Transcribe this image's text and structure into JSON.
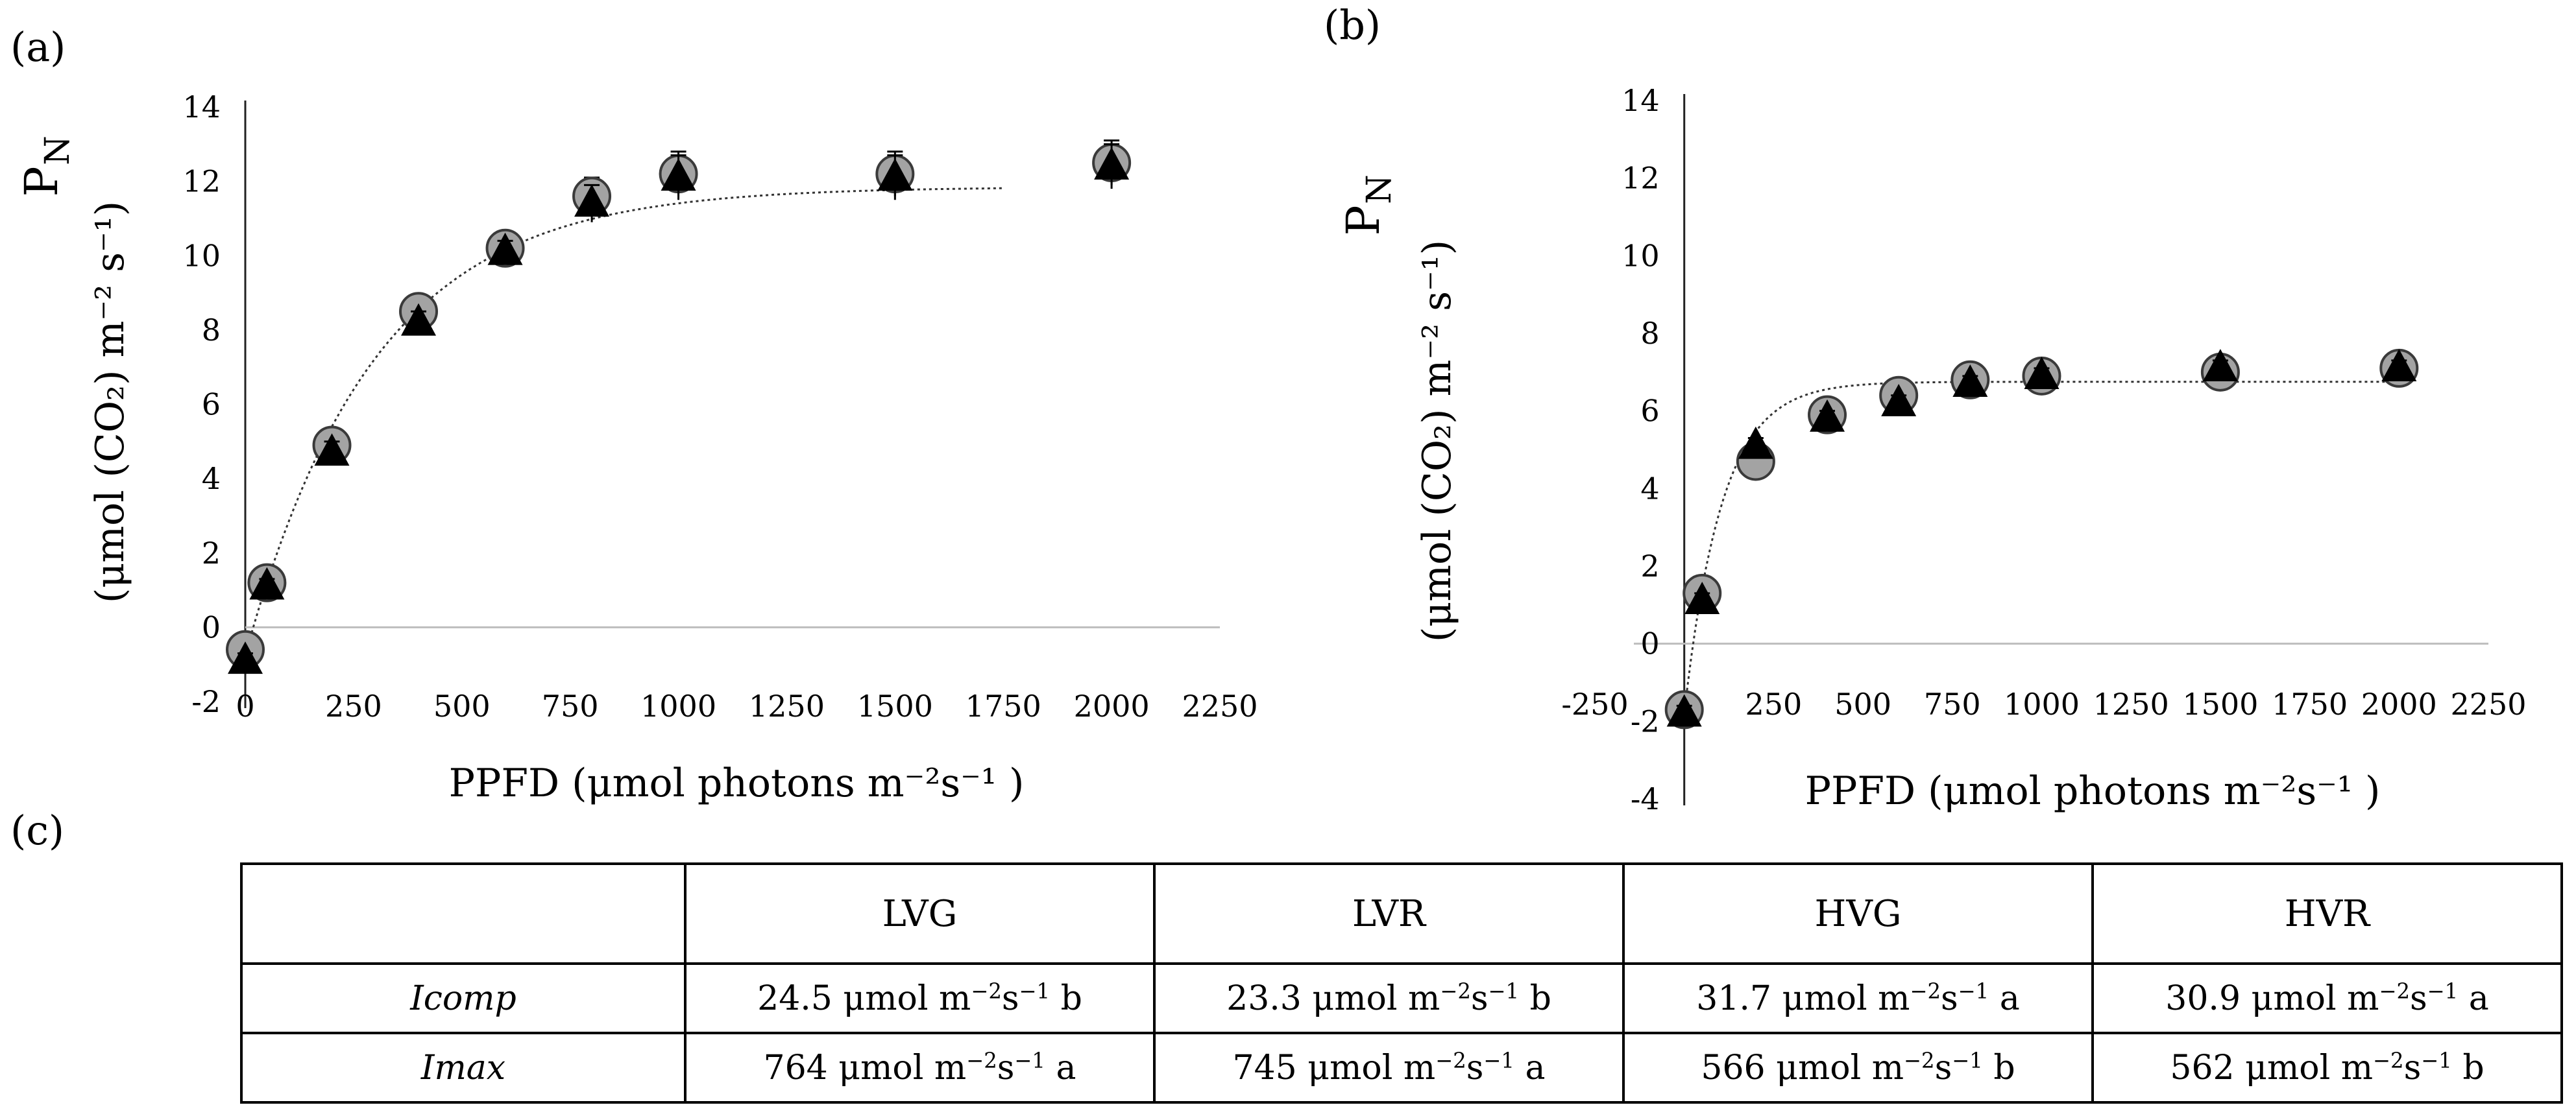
{
  "panels": {
    "a": "(a)",
    "b": "(b)",
    "c": "(c)"
  },
  "chart_data": [
    {
      "id": "a",
      "type": "scatter",
      "xlim": [
        0,
        2250
      ],
      "ylim": [
        -2,
        14
      ],
      "xticks": [
        "0",
        "250",
        "500",
        "750",
        "1000",
        "1250",
        "1500",
        "1750",
        "2000",
        "2250"
      ],
      "yticks": [
        "-2",
        "0",
        "2",
        "4",
        "6",
        "8",
        "10",
        "12",
        "14"
      ],
      "xlabel": "PPFD (μmol photons m⁻²s⁻¹ )",
      "ylabel_main": "P",
      "ylabel_main_sub": "N",
      "ylabel_units": "(μmol (CO₂) m⁻² s⁻¹)",
      "grid": false,
      "series": [
        {
          "name": "circles (grey)",
          "marker": "circle",
          "x": [
            0,
            50,
            200,
            400,
            600,
            800,
            1000,
            1500,
            2000
          ],
          "y": [
            -0.6,
            1.2,
            4.9,
            8.5,
            10.2,
            11.6,
            12.2,
            12.2,
            12.5
          ],
          "err": [
            0.2,
            0.2,
            0.3,
            0.3,
            0.3,
            0.5,
            0.6,
            0.6,
            0.6
          ]
        },
        {
          "name": "triangles (black)",
          "marker": "triangle",
          "x": [
            0,
            50,
            200,
            400,
            600,
            800,
            1000,
            1500,
            2000
          ],
          "y": [
            -0.9,
            1.1,
            4.7,
            8.2,
            10.1,
            11.4,
            12.1,
            12.1,
            12.4
          ],
          "err": [
            0.2,
            0.2,
            0.3,
            0.3,
            0.3,
            0.5,
            0.6,
            0.6,
            0.6
          ]
        }
      ],
      "fit": {
        "style": "dotted",
        "x_end": 1750,
        "pmax": 11.85,
        "rd": 0.75,
        "k": 0.00335
      }
    },
    {
      "id": "b",
      "type": "scatter",
      "xlim": [
        -250,
        2250
      ],
      "ylim": [
        -4,
        14
      ],
      "xticks": [
        "-250",
        "0",
        "250",
        "500",
        "750",
        "1000",
        "1250",
        "1500",
        "1750",
        "2000",
        "2250"
      ],
      "yticks": [
        "-4",
        "-2",
        "0",
        "2",
        "4",
        "6",
        "8",
        "10",
        "12",
        "14"
      ],
      "xlabel": "PPFD (μmol photons m⁻²s⁻¹ )",
      "ylabel_main": "P",
      "ylabel_main_sub": "N",
      "ylabel_units": "(μmol (CO₂) m⁻² s⁻¹)",
      "grid": false,
      "series": [
        {
          "name": "circles (grey)",
          "marker": "circle",
          "x": [
            0,
            50,
            200,
            400,
            600,
            800,
            1000,
            1500,
            2000
          ],
          "y": [
            -1.7,
            1.3,
            4.7,
            5.9,
            6.4,
            6.8,
            6.9,
            7.0,
            7.1
          ],
          "err": [
            0.2,
            0.2,
            0.2,
            0.2,
            0.2,
            0.2,
            0.2,
            0.2,
            0.2
          ]
        },
        {
          "name": "triangles (black)",
          "marker": "triangle",
          "x": [
            0,
            50,
            200,
            400,
            600,
            800,
            1000,
            1500,
            2000
          ],
          "y": [
            -1.8,
            1.1,
            5.1,
            5.8,
            6.2,
            6.7,
            6.9,
            7.1,
            7.1
          ],
          "err": [
            0.2,
            0.2,
            0.2,
            0.2,
            0.2,
            0.2,
            0.2,
            0.2,
            0.2
          ]
        }
      ],
      "fit": {
        "style": "dotted",
        "x_end": 2000,
        "pmax": 6.75,
        "rd": 1.8,
        "k": 0.0095
      }
    }
  ],
  "table": {
    "headers": [
      "",
      "LVG",
      "LVR",
      "HVG",
      "HVR"
    ],
    "rows": [
      {
        "label": "Icomp",
        "cells": [
          {
            "value": "24.5 μmol m",
            "units": "s",
            "letter": "b"
          },
          {
            "value": "23.3 μmol m",
            "units": "s",
            "letter": "b"
          },
          {
            "value": "31.7 μmol m",
            "units": "s",
            "letter": "a"
          },
          {
            "value": "30.9 μmol m",
            "units": "s",
            "letter": "a"
          }
        ]
      },
      {
        "label": "Imax",
        "cells": [
          {
            "value": "764 μmol m",
            "units": "s",
            "letter": "a"
          },
          {
            "value": "745 μmol m",
            "units": "s",
            "letter": "a"
          },
          {
            "value": "566 μmol m",
            "units": "s",
            "letter": "b"
          },
          {
            "value": "562 μmol m",
            "units": "s",
            "letter": "b"
          }
        ]
      }
    ],
    "exp_m": "−2",
    "exp_s": "−1"
  }
}
